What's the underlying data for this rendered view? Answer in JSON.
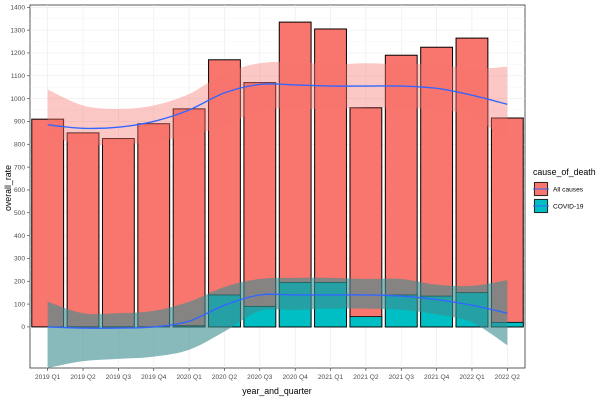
{
  "chart_data": {
    "type": "bar",
    "xlabel": "year_and_quarter",
    "ylabel": "overall_rate",
    "ylim": [
      -180,
      1410
    ],
    "yticks": [
      0,
      100,
      200,
      300,
      400,
      500,
      600,
      700,
      800,
      900,
      1000,
      1100,
      1200,
      1300,
      1400
    ],
    "categories": [
      "2019 Q1",
      "2019 Q2",
      "2019 Q3",
      "2019 Q4",
      "2020 Q1",
      "2020 Q2",
      "2020 Q3",
      "2020 Q4",
      "2021 Q1",
      "2021 Q2",
      "2021 Q3",
      "2021 Q4",
      "2022 Q1",
      "2022 Q2"
    ],
    "legend": {
      "title": "cause_of_death",
      "position": "right"
    },
    "grid": true,
    "series": [
      {
        "name": "All causes",
        "color": "#F8766D",
        "values": [
          910,
          850,
          825,
          890,
          955,
          1170,
          1070,
          1335,
          1305,
          960,
          1190,
          1225,
          1265,
          915
        ]
      },
      {
        "name": "COVID-19",
        "color": "#00BFC4",
        "values": [
          0,
          0,
          0,
          0,
          5,
          140,
          90,
          195,
          195,
          45,
          140,
          135,
          150,
          20
        ]
      }
    ],
    "smooth": {
      "All causes": {
        "line": [
          885,
          870,
          875,
          900,
          950,
          1025,
          1062,
          1060,
          1055,
          1055,
          1055,
          1045,
          1015,
          975
        ],
        "lower": [
          835,
          800,
          800,
          810,
          840,
          880,
          950,
          955,
          955,
          960,
          960,
          950,
          925,
          810
        ],
        "upper": [
          1040,
          970,
          955,
          970,
          1020,
          1110,
          1155,
          1160,
          1150,
          1155,
          1150,
          1150,
          1130,
          1140
        ]
      },
      "COVID-19": {
        "line": [
          0,
          -5,
          -5,
          0,
          25,
          95,
          140,
          140,
          140,
          140,
          135,
          120,
          95,
          60
        ],
        "lower": [
          -180,
          -150,
          -140,
          -130,
          -100,
          -20,
          70,
          75,
          80,
          80,
          75,
          55,
          20,
          -80
        ],
        "upper": [
          110,
          60,
          60,
          70,
          110,
          175,
          210,
          215,
          215,
          210,
          210,
          185,
          180,
          205
        ]
      }
    }
  }
}
